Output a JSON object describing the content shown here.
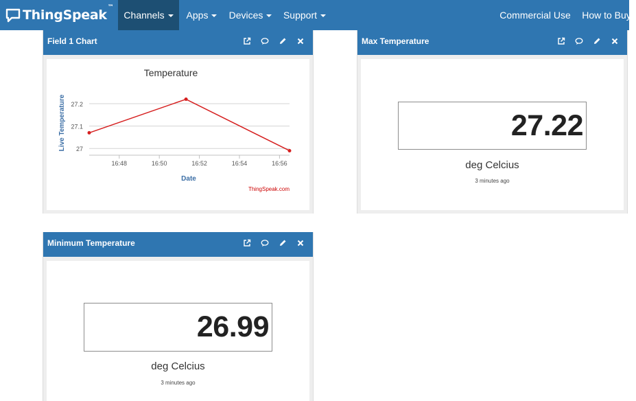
{
  "navbar": {
    "brand": "ThingSpeak",
    "brand_mark": "™",
    "items": [
      {
        "label": "Channels",
        "dropdown": true,
        "active": true
      },
      {
        "label": "Apps",
        "dropdown": true,
        "active": false
      },
      {
        "label": "Devices",
        "dropdown": true,
        "active": false
      },
      {
        "label": "Support",
        "dropdown": true,
        "active": false
      }
    ],
    "right_items": [
      {
        "label": "Commercial Use"
      },
      {
        "label": "How to Buy"
      }
    ]
  },
  "widgets": {
    "field_chart": {
      "title": "Field 1 Chart"
    },
    "max_temp": {
      "title": "Max Temperature",
      "value": "27.22",
      "units": "deg Celcius",
      "ago": "3 minutes ago"
    },
    "min_temp": {
      "title": "Minimum Temperature",
      "value": "26.99",
      "units": "deg Celcius",
      "ago": "3 minutes ago"
    }
  },
  "panel_tools": [
    "external-link-icon",
    "comment-icon",
    "pencil-icon",
    "close-icon"
  ],
  "colors": {
    "nav_bg": "#2f76b1",
    "nav_active": "#1d4f73",
    "series": "#d62020",
    "axis_label": "#3b6ea5"
  },
  "chart_data": {
    "type": "line",
    "title": "Temperature",
    "xlabel": "Date",
    "ylabel": "Live Temperature",
    "credit": "ThingSpeak.com",
    "x_ticks": [
      "16:48",
      "16:50",
      "16:52",
      "16:54",
      "16:56"
    ],
    "y_ticks": [
      "27",
      "27.1",
      "27.2"
    ],
    "xlim": [
      "16:46:30",
      "16:56:30"
    ],
    "ylim": [
      26.97,
      27.24
    ],
    "grid": true,
    "series": [
      {
        "color": "#d62020",
        "x": [
          "16:46:30",
          "16:51:20",
          "16:56:30"
        ],
        "y": [
          27.07,
          27.22,
          26.99
        ]
      }
    ]
  }
}
